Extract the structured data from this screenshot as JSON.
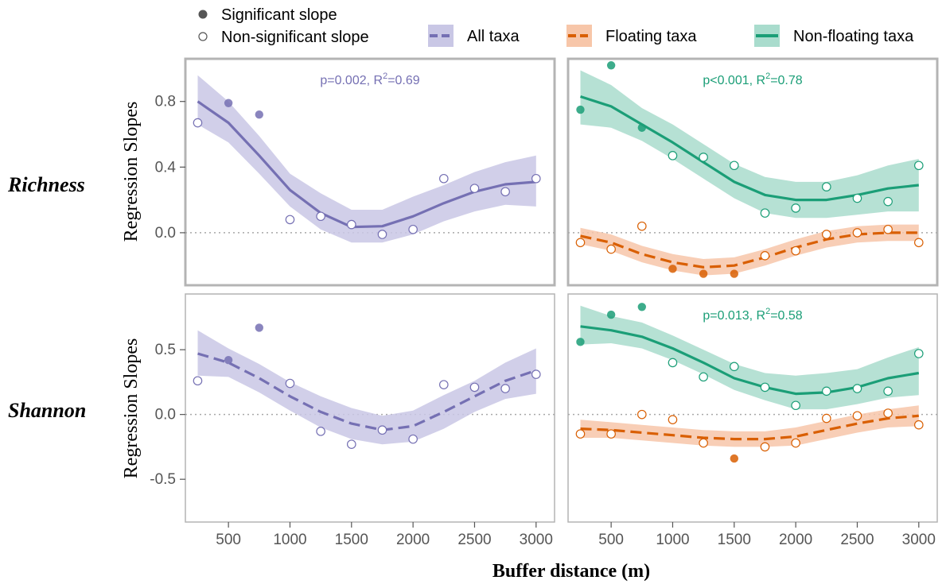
{
  "chart_data": {
    "type": "scatter",
    "xlabel": "Buffer distance (m)",
    "ylabel": "Regression Slopes",
    "x_ticks": [
      "500",
      "1000",
      "1500",
      "2000",
      "2500",
      "3000"
    ],
    "x_tick_values": [
      500,
      1000,
      1500,
      2000,
      2500,
      3000
    ],
    "xlim": [
      150,
      3150
    ],
    "legend": {
      "placement": "top",
      "points": [
        {
          "label": "Significant slope",
          "marker": "filled"
        },
        {
          "label": "Non-significant slope",
          "marker": "open"
        }
      ],
      "series": [
        {
          "label": "All taxa",
          "color": "#7570b3",
          "band": "#c9c7e5"
        },
        {
          "label": "Floating taxa",
          "color": "#d95f02",
          "band": "#f7c6a9"
        },
        {
          "label": "Non-floating taxa",
          "color": "#1b9e77",
          "band": "#a9dccd"
        }
      ]
    },
    "rows": [
      {
        "label": "Richness",
        "ylim": [
          -0.32,
          1.06
        ],
        "y_ticks": [
          "0.0",
          "0.4",
          "0.8"
        ],
        "y_tick_values": [
          0,
          0.4,
          0.8
        ]
      },
      {
        "label": "Shannon",
        "ylim": [
          -0.83,
          0.93
        ],
        "y_ticks": [
          "-0.5",
          "0.0",
          "0.5"
        ],
        "y_tick_values": [
          -0.5,
          0,
          0.5
        ]
      }
    ],
    "panels": [
      {
        "row": 0,
        "col": 0,
        "annotation": {
          "prefix": "p=0.002, R",
          "sup": "2",
          "suffix": "=0.69",
          "color": "#7570b3"
        },
        "series": [
          {
            "name": "All taxa",
            "color": "#7570b3",
            "band_color": "#c9c7e5",
            "dashed": false,
            "x": [
              250,
              500,
              750,
              1000,
              1250,
              1500,
              1750,
              2000,
              2250,
              2500,
              2750,
              3000
            ],
            "fit": [
              0.8,
              0.67,
              0.47,
              0.26,
              0.12,
              0.035,
              0.04,
              0.1,
              0.18,
              0.25,
              0.295,
              0.31
            ],
            "lower": [
              0.66,
              0.55,
              0.36,
              0.16,
              0.02,
              -0.06,
              -0.06,
              -0.01,
              0.07,
              0.13,
              0.17,
              0.16
            ],
            "upper": [
              0.96,
              0.8,
              0.59,
              0.36,
              0.24,
              0.14,
              0.14,
              0.22,
              0.29,
              0.37,
              0.43,
              0.47
            ],
            "points": [
              {
                "x": 250,
                "y": 0.67,
                "sig": false
              },
              {
                "x": 500,
                "y": 0.79,
                "sig": true
              },
              {
                "x": 750,
                "y": 0.72,
                "sig": true
              },
              {
                "x": 1000,
                "y": 0.08,
                "sig": false
              },
              {
                "x": 1250,
                "y": 0.1,
                "sig": false
              },
              {
                "x": 1500,
                "y": 0.05,
                "sig": false
              },
              {
                "x": 1750,
                "y": -0.01,
                "sig": false
              },
              {
                "x": 2000,
                "y": 0.02,
                "sig": false
              },
              {
                "x": 2250,
                "y": 0.33,
                "sig": false
              },
              {
                "x": 2500,
                "y": 0.27,
                "sig": false
              },
              {
                "x": 2750,
                "y": 0.25,
                "sig": false
              },
              {
                "x": 3000,
                "y": 0.33,
                "sig": false
              }
            ]
          }
        ]
      },
      {
        "row": 0,
        "col": 1,
        "annotation": {
          "prefix": "p<0.001, R",
          "sup": "2",
          "suffix": "=0.78",
          "color": "#1b9e77"
        },
        "series": [
          {
            "name": "Floating taxa",
            "color": "#d95f02",
            "band_color": "#f7c6a9",
            "dashed": true,
            "x": [
              250,
              500,
              750,
              1000,
              1250,
              1500,
              1750,
              2000,
              2250,
              2500,
              2750,
              3000
            ],
            "fit": [
              -0.02,
              -0.06,
              -0.13,
              -0.18,
              -0.21,
              -0.2,
              -0.15,
              -0.09,
              -0.04,
              -0.01,
              0.0,
              0.0
            ],
            "lower": [
              -0.07,
              -0.11,
              -0.18,
              -0.23,
              -0.26,
              -0.25,
              -0.2,
              -0.14,
              -0.09,
              -0.06,
              -0.05,
              -0.05
            ],
            "upper": [
              0.03,
              -0.01,
              -0.08,
              -0.13,
              -0.16,
              -0.15,
              -0.1,
              -0.04,
              0.01,
              0.04,
              0.05,
              0.05
            ],
            "points": [
              {
                "x": 250,
                "y": -0.06,
                "sig": false
              },
              {
                "x": 500,
                "y": -0.1,
                "sig": false
              },
              {
                "x": 750,
                "y": 0.04,
                "sig": false
              },
              {
                "x": 1000,
                "y": -0.22,
                "sig": true
              },
              {
                "x": 1250,
                "y": -0.25,
                "sig": true
              },
              {
                "x": 1500,
                "y": -0.25,
                "sig": true
              },
              {
                "x": 1750,
                "y": -0.14,
                "sig": false
              },
              {
                "x": 2000,
                "y": -0.11,
                "sig": false
              },
              {
                "x": 2250,
                "y": -0.01,
                "sig": false
              },
              {
                "x": 2500,
                "y": 0.0,
                "sig": false
              },
              {
                "x": 2750,
                "y": 0.02,
                "sig": false
              },
              {
                "x": 3000,
                "y": -0.06,
                "sig": false
              }
            ]
          },
          {
            "name": "Non-floating taxa",
            "color": "#1b9e77",
            "band_color": "#a9dccd",
            "dashed": false,
            "x": [
              250,
              500,
              750,
              1000,
              1250,
              1500,
              1750,
              2000,
              2250,
              2500,
              2750,
              3000
            ],
            "fit": [
              0.83,
              0.77,
              0.66,
              0.55,
              0.43,
              0.31,
              0.23,
              0.2,
              0.2,
              0.23,
              0.27,
              0.29
            ],
            "lower": [
              0.66,
              0.64,
              0.56,
              0.45,
              0.33,
              0.21,
              0.12,
              0.09,
              0.09,
              0.11,
              0.13,
              0.13
            ],
            "upper": [
              0.99,
              0.9,
              0.76,
              0.66,
              0.54,
              0.42,
              0.34,
              0.31,
              0.31,
              0.35,
              0.41,
              0.45
            ],
            "points": [
              {
                "x": 250,
                "y": 0.75,
                "sig": true
              },
              {
                "x": 500,
                "y": 1.02,
                "sig": true
              },
              {
                "x": 750,
                "y": 0.64,
                "sig": true
              },
              {
                "x": 1000,
                "y": 0.47,
                "sig": false
              },
              {
                "x": 1250,
                "y": 0.46,
                "sig": false
              },
              {
                "x": 1500,
                "y": 0.41,
                "sig": false
              },
              {
                "x": 1750,
                "y": 0.12,
                "sig": false
              },
              {
                "x": 2000,
                "y": 0.15,
                "sig": false
              },
              {
                "x": 2250,
                "y": 0.28,
                "sig": false
              },
              {
                "x": 2500,
                "y": 0.21,
                "sig": false
              },
              {
                "x": 2750,
                "y": 0.19,
                "sig": false
              },
              {
                "x": 3000,
                "y": 0.41,
                "sig": false
              }
            ]
          }
        ]
      },
      {
        "row": 1,
        "col": 0,
        "annotation": null,
        "series": [
          {
            "name": "All taxa",
            "color": "#7570b3",
            "band_color": "#c9c7e5",
            "dashed": true,
            "x": [
              250,
              500,
              750,
              1000,
              1250,
              1500,
              1750,
              2000,
              2250,
              2500,
              2750,
              3000
            ],
            "fit": [
              0.47,
              0.4,
              0.28,
              0.14,
              0.02,
              -0.07,
              -0.12,
              -0.09,
              0.02,
              0.14,
              0.26,
              0.34
            ],
            "lower": [
              0.3,
              0.29,
              0.17,
              0.03,
              -0.1,
              -0.19,
              -0.23,
              -0.21,
              -0.11,
              0.02,
              0.12,
              0.16
            ],
            "upper": [
              0.65,
              0.51,
              0.39,
              0.25,
              0.14,
              0.05,
              -0.01,
              0.03,
              0.15,
              0.26,
              0.4,
              0.51
            ],
            "points": [
              {
                "x": 250,
                "y": 0.26,
                "sig": false
              },
              {
                "x": 500,
                "y": 0.42,
                "sig": true
              },
              {
                "x": 750,
                "y": 0.67,
                "sig": true
              },
              {
                "x": 1000,
                "y": 0.24,
                "sig": false
              },
              {
                "x": 1250,
                "y": -0.13,
                "sig": false
              },
              {
                "x": 1500,
                "y": -0.23,
                "sig": false
              },
              {
                "x": 1750,
                "y": -0.12,
                "sig": false
              },
              {
                "x": 2000,
                "y": -0.19,
                "sig": false
              },
              {
                "x": 2250,
                "y": 0.23,
                "sig": false
              },
              {
                "x": 2500,
                "y": 0.21,
                "sig": false
              },
              {
                "x": 2750,
                "y": 0.2,
                "sig": false
              },
              {
                "x": 3000,
                "y": 0.31,
                "sig": false
              }
            ]
          }
        ]
      },
      {
        "row": 1,
        "col": 1,
        "annotation": {
          "prefix": "p=0.013, R",
          "sup": "2",
          "suffix": "=0.58",
          "color": "#1b9e77"
        },
        "series": [
          {
            "name": "Floating taxa",
            "color": "#d95f02",
            "band_color": "#f7c6a9",
            "dashed": true,
            "x": [
              250,
              500,
              750,
              1000,
              1250,
              1500,
              1750,
              2000,
              2250,
              2500,
              2750,
              3000
            ],
            "fit": [
              -0.11,
              -0.12,
              -0.14,
              -0.16,
              -0.18,
              -0.19,
              -0.19,
              -0.17,
              -0.12,
              -0.07,
              -0.03,
              -0.01
            ],
            "lower": [
              -0.18,
              -0.18,
              -0.2,
              -0.22,
              -0.24,
              -0.25,
              -0.25,
              -0.24,
              -0.19,
              -0.14,
              -0.1,
              -0.09
            ],
            "upper": [
              -0.04,
              -0.06,
              -0.08,
              -0.1,
              -0.12,
              -0.13,
              -0.13,
              -0.1,
              -0.05,
              0.0,
              0.04,
              0.07
            ],
            "points": [
              {
                "x": 250,
                "y": -0.15,
                "sig": false
              },
              {
                "x": 500,
                "y": -0.15,
                "sig": false
              },
              {
                "x": 750,
                "y": 0.0,
                "sig": false
              },
              {
                "x": 1000,
                "y": -0.04,
                "sig": false
              },
              {
                "x": 1250,
                "y": -0.22,
                "sig": false
              },
              {
                "x": 1500,
                "y": -0.34,
                "sig": true
              },
              {
                "x": 1750,
                "y": -0.25,
                "sig": false
              },
              {
                "x": 2000,
                "y": -0.22,
                "sig": false
              },
              {
                "x": 2250,
                "y": -0.03,
                "sig": false
              },
              {
                "x": 2500,
                "y": -0.01,
                "sig": false
              },
              {
                "x": 2750,
                "y": 0.01,
                "sig": false
              },
              {
                "x": 3000,
                "y": -0.08,
                "sig": false
              }
            ]
          },
          {
            "name": "Non-floating taxa",
            "color": "#1b9e77",
            "band_color": "#a9dccd",
            "dashed": false,
            "x": [
              250,
              500,
              750,
              1000,
              1250,
              1500,
              1750,
              2000,
              2250,
              2500,
              2750,
              3000
            ],
            "fit": [
              0.68,
              0.65,
              0.6,
              0.51,
              0.4,
              0.28,
              0.21,
              0.16,
              0.17,
              0.21,
              0.28,
              0.32
            ],
            "lower": [
              0.54,
              0.55,
              0.51,
              0.42,
              0.31,
              0.19,
              0.11,
              0.04,
              0.04,
              0.08,
              0.13,
              0.15
            ],
            "upper": [
              0.84,
              0.76,
              0.71,
              0.61,
              0.5,
              0.39,
              0.32,
              0.3,
              0.32,
              0.35,
              0.44,
              0.52
            ],
            "points": [
              {
                "x": 250,
                "y": 0.56,
                "sig": true
              },
              {
                "x": 500,
                "y": 0.77,
                "sig": true
              },
              {
                "x": 750,
                "y": 0.83,
                "sig": true
              },
              {
                "x": 1000,
                "y": 0.4,
                "sig": false
              },
              {
                "x": 1250,
                "y": 0.29,
                "sig": false
              },
              {
                "x": 1500,
                "y": 0.37,
                "sig": false
              },
              {
                "x": 1750,
                "y": 0.21,
                "sig": false
              },
              {
                "x": 2000,
                "y": 0.07,
                "sig": false
              },
              {
                "x": 2250,
                "y": 0.18,
                "sig": false
              },
              {
                "x": 2500,
                "y": 0.2,
                "sig": false
              },
              {
                "x": 2750,
                "y": 0.18,
                "sig": false
              },
              {
                "x": 3000,
                "y": 0.47,
                "sig": false
              }
            ]
          }
        ]
      }
    ]
  }
}
